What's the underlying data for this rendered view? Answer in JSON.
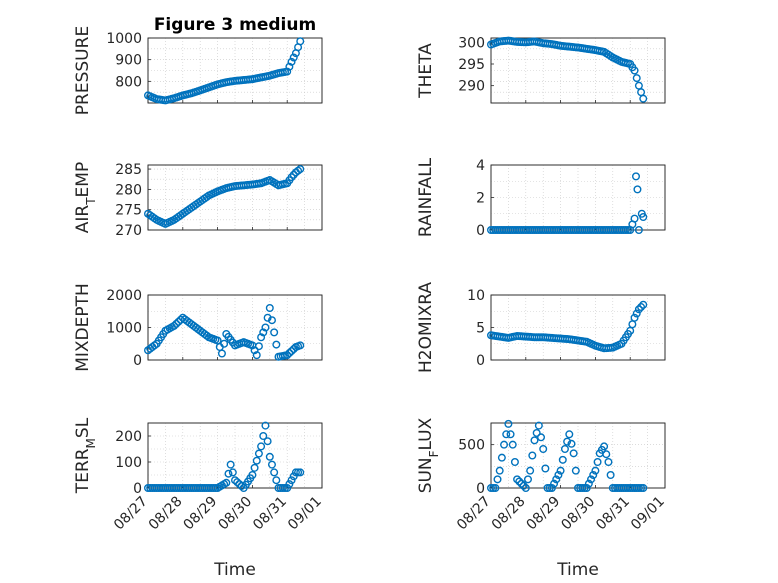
{
  "figure": {
    "title": "Figure 3 medium",
    "xlabel": "Time",
    "marker_color": "#0072BD",
    "date_ticks": [
      "08/27",
      "08/28",
      "08/29",
      "08/30",
      "08/31",
      "09/01"
    ]
  },
  "chart_data": [
    {
      "type": "scatter",
      "title": "Figure 3 medium",
      "ylabel": "PRESSURE",
      "ylim": [
        700,
        1000
      ],
      "yticks": [
        800,
        900,
        1000
      ],
      "xlim": [
        "08/27",
        "09/01"
      ],
      "grid": true,
      "x": [
        "08/27 00:00",
        "08/27 06:00",
        "08/27 12:00",
        "08/27 18:00",
        "08/28 00:00",
        "08/28 06:00",
        "08/28 12:00",
        "08/28 18:00",
        "08/29 00:00",
        "08/29 06:00",
        "08/29 12:00",
        "08/29 18:00",
        "08/30 00:00",
        "08/30 06:00",
        "08/30 12:00",
        "08/30 18:00",
        "08/31 00:00",
        "08/31 03:00",
        "08/31 06:00",
        "08/31 09:00"
      ],
      "y": [
        735,
        718,
        712,
        722,
        735,
        745,
        758,
        772,
        786,
        796,
        802,
        806,
        810,
        818,
        826,
        838,
        845,
        890,
        930,
        985
      ]
    },
    {
      "type": "scatter",
      "ylabel": "THETA",
      "ylim": [
        286,
        301
      ],
      "yticks": [
        290,
        295,
        300
      ],
      "xlim": [
        "08/27",
        "09/01"
      ],
      "grid": true,
      "x": [
        "08/27 00:00",
        "08/27 06:00",
        "08/27 12:00",
        "08/27 18:00",
        "08/28 00:00",
        "08/28 06:00",
        "08/28 12:00",
        "08/28 18:00",
        "08/29 00:00",
        "08/29 06:00",
        "08/29 12:00",
        "08/29 18:00",
        "08/30 00:00",
        "08/30 06:00",
        "08/30 12:00",
        "08/30 18:00",
        "08/31 00:00",
        "08/31 03:00",
        "08/31 06:00",
        "08/31 09:00"
      ],
      "y": [
        299.5,
        300.2,
        300.4,
        300.1,
        300.0,
        300.2,
        299.8,
        299.6,
        299.2,
        299.0,
        298.8,
        298.5,
        298.2,
        297.8,
        296.5,
        295.5,
        295.0,
        293.5,
        290.0,
        287.0
      ]
    },
    {
      "type": "scatter",
      "ylabel": "AIR_TEMP",
      "ylim": [
        270,
        286
      ],
      "yticks": [
        270,
        275,
        280,
        285
      ],
      "xlim": [
        "08/27",
        "09/01"
      ],
      "grid": true,
      "x": [
        "08/27 00:00",
        "08/27 06:00",
        "08/27 12:00",
        "08/27 18:00",
        "08/28 00:00",
        "08/28 06:00",
        "08/28 12:00",
        "08/28 18:00",
        "08/29 00:00",
        "08/29 06:00",
        "08/29 12:00",
        "08/29 18:00",
        "08/30 00:00",
        "08/30 06:00",
        "08/30 12:00",
        "08/30 18:00",
        "08/31 00:00",
        "08/31 03:00",
        "08/31 06:00",
        "08/31 09:00"
      ],
      "y": [
        274.0,
        272.5,
        271.5,
        272.5,
        274.0,
        275.5,
        277.0,
        278.5,
        279.5,
        280.3,
        280.8,
        281.0,
        281.2,
        281.5,
        282.3,
        281.0,
        281.5,
        283.0,
        284.2,
        285.0
      ]
    },
    {
      "type": "scatter",
      "ylabel": "RAINFALL",
      "ylim": [
        0,
        4
      ],
      "yticks": [
        0,
        2,
        4
      ],
      "xlim": [
        "08/27",
        "09/01"
      ],
      "grid": true,
      "x": [
        "08/27 00:00",
        "08/27 12:00",
        "08/28 00:00",
        "08/28 12:00",
        "08/29 00:00",
        "08/29 12:00",
        "08/30 00:00",
        "08/30 12:00",
        "08/30 18:00",
        "08/31 00:00",
        "08/31 03:00",
        "08/31 04:00",
        "08/31 05:00",
        "08/31 06:00",
        "08/31 08:00",
        "08/31 09:00"
      ],
      "y": [
        0,
        0,
        0,
        0,
        0,
        0,
        0,
        0,
        0,
        0,
        0.7,
        3.3,
        2.5,
        0.0,
        1.0,
        0.8
      ]
    },
    {
      "type": "scatter",
      "ylabel": "MIXDEPTH",
      "ylim": [
        0,
        2000
      ],
      "yticks": [
        0,
        1000,
        2000
      ],
      "xlim": [
        "08/27",
        "09/01"
      ],
      "grid": true,
      "x": [
        "08/27 00:00",
        "08/27 06:00",
        "08/27 12:00",
        "08/27 18:00",
        "08/28 00:00",
        "08/28 06:00",
        "08/28 12:00",
        "08/28 18:00",
        "08/29 00:00",
        "08/29 03:00",
        "08/29 06:00",
        "08/29 12:00",
        "08/29 18:00",
        "08/30 00:00",
        "08/30 03:00",
        "08/30 06:00",
        "08/30 09:00",
        "08/30 12:00",
        "08/30 18:00",
        "08/31 00:00",
        "08/31 06:00",
        "08/31 09:00"
      ],
      "y": [
        300,
        500,
        900,
        1050,
        1300,
        1100,
        900,
        700,
        600,
        200,
        800,
        450,
        550,
        450,
        150,
        700,
        1000,
        1600,
        100,
        150,
        400,
        450
      ]
    },
    {
      "type": "scatter",
      "ylabel": "H2OMIXRA",
      "ylim": [
        0,
        10
      ],
      "yticks": [
        0,
        5,
        10
      ],
      "xlim": [
        "08/27",
        "09/01"
      ],
      "grid": true,
      "x": [
        "08/27 00:00",
        "08/27 06:00",
        "08/27 12:00",
        "08/27 18:00",
        "08/28 00:00",
        "08/28 06:00",
        "08/28 12:00",
        "08/28 18:00",
        "08/29 00:00",
        "08/29 06:00",
        "08/29 12:00",
        "08/29 18:00",
        "08/30 00:00",
        "08/30 06:00",
        "08/30 12:00",
        "08/30 18:00",
        "08/31 00:00",
        "08/31 03:00",
        "08/31 06:00",
        "08/31 09:00"
      ],
      "y": [
        3.8,
        3.6,
        3.4,
        3.7,
        3.6,
        3.5,
        3.5,
        3.4,
        3.3,
        3.2,
        3.0,
        2.8,
        2.2,
        1.8,
        1.9,
        2.5,
        4.5,
        6.5,
        7.8,
        8.5
      ]
    },
    {
      "type": "scatter",
      "ylabel": "TERR_MSL",
      "ylim": [
        0,
        250
      ],
      "yticks": [
        0,
        100,
        200
      ],
      "xlim": [
        "08/27",
        "09/01"
      ],
      "grid": true,
      "x": [
        "08/27 00:00",
        "08/27 12:00",
        "08/28 00:00",
        "08/28 12:00",
        "08/29 00:00",
        "08/29 06:00",
        "08/29 09:00",
        "08/29 12:00",
        "08/29 18:00",
        "08/30 00:00",
        "08/30 06:00",
        "08/30 09:00",
        "08/30 12:00",
        "08/30 18:00",
        "08/31 00:00",
        "08/31 03:00",
        "08/31 06:00",
        "08/31 09:00"
      ],
      "y": [
        0,
        0,
        0,
        0,
        0,
        20,
        90,
        30,
        0,
        50,
        160,
        240,
        120,
        0,
        0,
        30,
        60,
        60
      ]
    },
    {
      "type": "scatter",
      "ylabel": "SUN_FLUX",
      "ylim": [
        0,
        750
      ],
      "yticks": [
        0,
        500
      ],
      "xlim": [
        "08/27",
        "09/01"
      ],
      "grid": true,
      "x": [
        "08/27 00:00",
        "08/27 03:00",
        "08/27 06:00",
        "08/27 09:00",
        "08/27 12:00",
        "08/27 15:00",
        "08/27 18:00",
        "08/28 00:00",
        "08/28 03:00",
        "08/28 06:00",
        "08/28 09:00",
        "08/28 12:00",
        "08/28 15:00",
        "08/28 18:00",
        "08/29 00:00",
        "08/29 03:00",
        "08/29 06:00",
        "08/29 09:00",
        "08/29 12:00",
        "08/29 15:00",
        "08/29 18:00",
        "08/30 00:00",
        "08/30 03:00",
        "08/30 06:00",
        "08/30 09:00",
        "08/30 12:00",
        "08/30 15:00",
        "08/30 18:00",
        "08/31 00:00",
        "08/31 06:00",
        "08/31 09:00"
      ],
      "y": [
        0,
        0,
        200,
        500,
        740,
        500,
        100,
        0,
        200,
        550,
        720,
        450,
        0,
        0,
        200,
        450,
        620,
        400,
        0,
        0,
        0,
        200,
        400,
        480,
        300,
        0,
        0,
        0,
        0,
        0,
        0
      ]
    }
  ]
}
